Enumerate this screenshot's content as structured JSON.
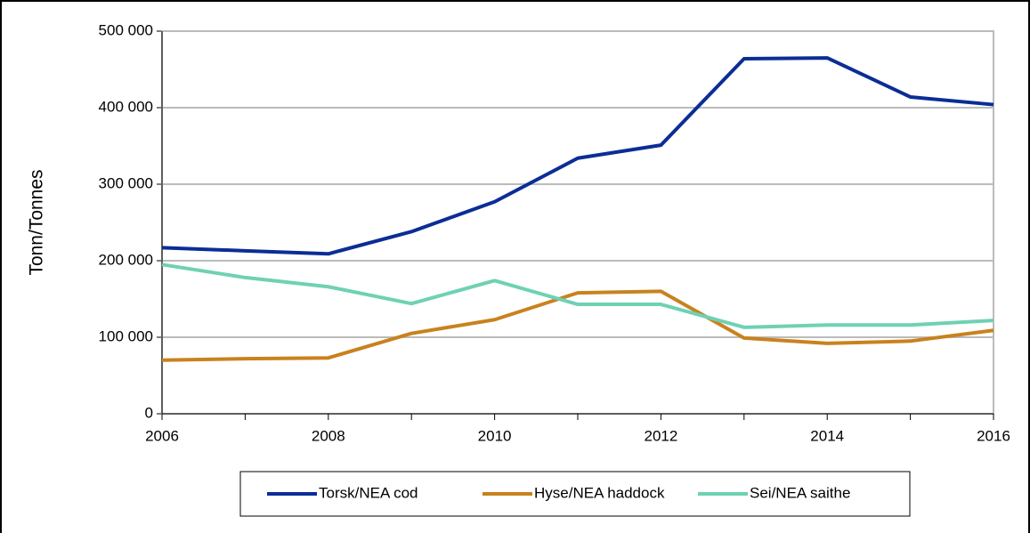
{
  "chart_data": {
    "type": "line",
    "y_label": "Tonn/Tonnes",
    "x": [
      2006,
      2007,
      2008,
      2009,
      2010,
      2011,
      2012,
      2013,
      2014,
      2015,
      2016
    ],
    "series": [
      {
        "name": "Torsk/NEA cod",
        "color": "#0b2d96",
        "values": [
          217000,
          213000,
          209000,
          238000,
          277000,
          334000,
          351000,
          464000,
          465000,
          414000,
          404000
        ]
      },
      {
        "name": "Hyse/NEA haddock",
        "color": "#c8821e",
        "values": [
          70000,
          72000,
          73000,
          105000,
          123000,
          158000,
          160000,
          99000,
          92000,
          95000,
          109000
        ]
      },
      {
        "name": "Sei/NEA saithe",
        "color": "#6fd1b4",
        "values": [
          195000,
          178000,
          166000,
          144000,
          174000,
          143000,
          143000,
          113000,
          116000,
          116000,
          122000
        ]
      }
    ],
    "xlim": [
      2006,
      2016
    ],
    "xticks": [
      2006,
      2008,
      2010,
      2012,
      2014,
      2016
    ],
    "ylim": [
      0,
      500000
    ],
    "yticks": [
      0,
      {
        "value": 100000,
        "label": "100 000"
      },
      {
        "value": 200000,
        "label": "200 000"
      },
      {
        "value": 300000,
        "label": "300 000"
      },
      {
        "value": 400000,
        "label": "400 000"
      },
      {
        "value": 500000,
        "label": "500 000"
      }
    ],
    "grid": true,
    "legend": "bottom"
  }
}
